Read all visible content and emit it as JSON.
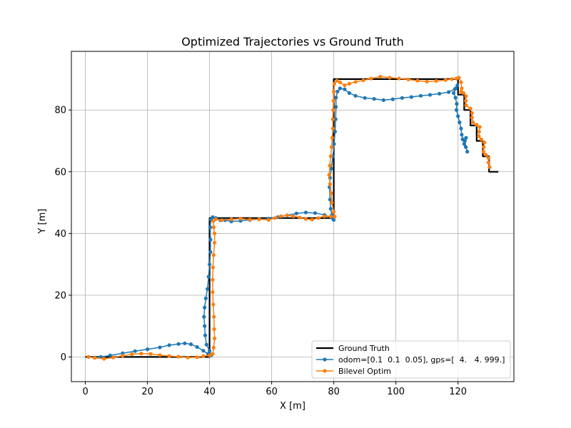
{
  "chart_data": {
    "type": "line",
    "title": "Optimized Trajectories vs Ground Truth",
    "xlabel": "X [m]",
    "ylabel": "Y [m]",
    "xlim": [
      -4.5,
      138
    ],
    "ylim": [
      -8,
      99
    ],
    "xticks": [
      0,
      20,
      40,
      60,
      80,
      100,
      120
    ],
    "yticks": [
      0,
      20,
      40,
      60,
      80
    ],
    "grid": true,
    "legend_position": "lower-right",
    "series": [
      {
        "name": "Ground Truth",
        "color": "#000000",
        "marker": "none",
        "points": [
          [
            0,
            0
          ],
          [
            40,
            0
          ],
          [
            40,
            45
          ],
          [
            80,
            45
          ],
          [
            80,
            90
          ],
          [
            120,
            90
          ],
          [
            120,
            85
          ],
          [
            122,
            85
          ],
          [
            122,
            80
          ],
          [
            124,
            80
          ],
          [
            124,
            75
          ],
          [
            126,
            75
          ],
          [
            126,
            70
          ],
          [
            128,
            70
          ],
          [
            128,
            65
          ],
          [
            130,
            65
          ],
          [
            130,
            60
          ],
          [
            133,
            60
          ]
        ]
      },
      {
        "name": "odom=[0.1  0.1  0.05], gps=[  4.   4. 999.]",
        "color": "#1f77b4",
        "marker": "dot",
        "points": [
          [
            1,
            0
          ],
          [
            3,
            -0.2
          ],
          [
            5,
            0
          ],
          [
            8,
            0.5
          ],
          [
            12,
            1.2
          ],
          [
            16,
            1.9
          ],
          [
            20,
            2.5
          ],
          [
            24,
            3.1
          ],
          [
            27,
            3.8
          ],
          [
            30,
            4.2
          ],
          [
            32,
            4.4
          ],
          [
            34,
            4.1
          ],
          [
            36,
            3.2
          ],
          [
            38,
            2
          ],
          [
            39.5,
            1
          ],
          [
            40.5,
            0.5
          ],
          [
            40,
            2
          ],
          [
            39,
            4
          ],
          [
            38.6,
            7
          ],
          [
            38.4,
            10
          ],
          [
            38.2,
            13
          ],
          [
            38.4,
            16
          ],
          [
            38.8,
            19
          ],
          [
            39.3,
            22
          ],
          [
            39.7,
            26
          ],
          [
            40,
            30
          ],
          [
            40.3,
            34
          ],
          [
            40.3,
            38
          ],
          [
            40.2,
            42
          ],
          [
            40.4,
            44.5
          ],
          [
            41,
            45.3
          ],
          [
            42,
            45
          ],
          [
            43.5,
            44.3
          ],
          [
            45,
            44.3
          ],
          [
            47,
            43.9
          ],
          [
            50,
            44.1
          ],
          [
            53,
            44.4
          ],
          [
            56,
            44.6
          ],
          [
            59,
            44.8
          ],
          [
            62,
            45.3
          ],
          [
            65,
            45.9
          ],
          [
            68,
            46.5
          ],
          [
            71,
            46.8
          ],
          [
            74,
            46.6
          ],
          [
            77,
            46
          ],
          [
            79.5,
            45
          ],
          [
            80,
            44.4
          ],
          [
            79.4,
            46
          ],
          [
            79,
            48
          ],
          [
            78.8,
            51
          ],
          [
            78.6,
            55
          ],
          [
            78.8,
            58
          ],
          [
            79.2,
            61
          ],
          [
            79.7,
            65
          ],
          [
            80.1,
            69
          ],
          [
            80.4,
            73
          ],
          [
            80.6,
            77
          ],
          [
            80.7,
            81
          ],
          [
            80.7,
            84
          ],
          [
            81.2,
            86
          ],
          [
            82,
            87
          ],
          [
            83.5,
            86.7
          ],
          [
            85,
            85.5
          ],
          [
            87,
            84.6
          ],
          [
            90,
            83.9
          ],
          [
            93,
            83.6
          ],
          [
            96,
            83.2
          ],
          [
            99,
            83.5
          ],
          [
            102,
            83.9
          ],
          [
            105,
            84.2
          ],
          [
            108,
            84.6
          ],
          [
            111,
            84.9
          ],
          [
            114,
            85.3
          ],
          [
            117,
            85.8
          ],
          [
            119,
            86.8
          ],
          [
            119.8,
            88
          ],
          [
            119.3,
            87
          ],
          [
            118.6,
            85.5
          ],
          [
            119.2,
            84
          ],
          [
            119.6,
            82
          ],
          [
            119.5,
            80
          ],
          [
            120,
            78
          ],
          [
            120.5,
            76
          ],
          [
            121,
            74
          ],
          [
            121.2,
            72
          ],
          [
            121.5,
            70.5
          ],
          [
            122,
            69
          ],
          [
            122.5,
            68
          ],
          [
            123,
            66.5
          ],
          [
            122.5,
            68
          ],
          [
            122.2,
            70
          ],
          [
            122.6,
            71
          ]
        ]
      },
      {
        "name": "Bilevel Optim",
        "color": "#ff7f0e",
        "marker": "dot",
        "points": [
          [
            1,
            0
          ],
          [
            3,
            -0.3
          ],
          [
            6,
            -0.6
          ],
          [
            9,
            -0.2
          ],
          [
            12,
            0.4
          ],
          [
            15,
            0.9
          ],
          [
            18,
            1.1
          ],
          [
            21,
            1
          ],
          [
            24,
            0.6
          ],
          [
            27,
            0.3
          ],
          [
            30,
            0.1
          ],
          [
            33,
            -0.2
          ],
          [
            36,
            -0.1
          ],
          [
            38,
            0.3
          ],
          [
            40,
            0.5
          ],
          [
            41,
            1
          ],
          [
            41.3,
            3
          ],
          [
            41.6,
            6
          ],
          [
            41.5,
            9
          ],
          [
            41.4,
            13
          ],
          [
            41.2,
            17
          ],
          [
            41,
            21
          ],
          [
            41,
            25
          ],
          [
            41.1,
            29
          ],
          [
            41.3,
            33
          ],
          [
            41.6,
            37
          ],
          [
            41.6,
            40
          ],
          [
            41.3,
            42
          ],
          [
            41.2,
            44
          ],
          [
            42,
            44.6
          ],
          [
            44,
            44.3
          ],
          [
            47,
            44.6
          ],
          [
            50,
            44.8
          ],
          [
            53,
            44.5
          ],
          [
            56,
            44.6
          ],
          [
            59,
            44.4
          ],
          [
            61,
            45
          ],
          [
            63,
            45.6
          ],
          [
            65,
            45.9
          ],
          [
            67,
            45.6
          ],
          [
            69,
            45.2
          ],
          [
            71,
            44.7
          ],
          [
            73,
            44.5
          ],
          [
            75,
            45
          ],
          [
            77,
            45.6
          ],
          [
            79,
            45.5
          ],
          [
            80.3,
            45.5
          ],
          [
            80,
            47
          ],
          [
            79.4,
            50
          ],
          [
            79.2,
            53
          ],
          [
            78.8,
            56
          ],
          [
            78.5,
            59
          ],
          [
            78.7,
            62
          ],
          [
            79,
            65
          ],
          [
            79.3,
            68
          ],
          [
            79.5,
            71
          ],
          [
            79.7,
            74
          ],
          [
            79.7,
            77
          ],
          [
            79.8,
            80
          ],
          [
            79.9,
            83
          ],
          [
            80,
            86
          ],
          [
            80.2,
            88.5
          ],
          [
            81,
            89.5
          ],
          [
            82,
            89
          ],
          [
            83.5,
            88
          ],
          [
            85,
            88.5
          ],
          [
            87,
            89.1
          ],
          [
            89.5,
            89.6
          ],
          [
            92,
            90.2
          ],
          [
            95,
            90.8
          ],
          [
            98,
            90.5
          ],
          [
            101,
            90.2
          ],
          [
            104,
            89.9
          ],
          [
            107,
            89.5
          ],
          [
            110,
            89.2
          ],
          [
            113,
            89.4
          ],
          [
            116,
            89.7
          ],
          [
            118,
            90
          ],
          [
            119.5,
            90.2
          ],
          [
            120.3,
            90.5
          ],
          [
            121,
            89
          ],
          [
            121.2,
            87
          ],
          [
            121,
            86
          ],
          [
            121.8,
            85.5
          ],
          [
            122.6,
            84.5
          ],
          [
            122.5,
            83
          ],
          [
            122.6,
            81.5
          ],
          [
            124,
            80.5
          ],
          [
            124.5,
            79
          ],
          [
            124.5,
            77.5
          ],
          [
            124.8,
            76
          ],
          [
            126,
            75.2
          ],
          [
            127,
            74.5
          ],
          [
            126.8,
            73
          ],
          [
            126.7,
            71.5
          ],
          [
            127.5,
            70.5
          ],
          [
            128.5,
            69.5
          ],
          [
            128.3,
            68
          ],
          [
            128.2,
            66.5
          ],
          [
            129,
            65.5
          ],
          [
            129.8,
            64.5
          ],
          [
            129.8,
            63
          ],
          [
            130.2,
            61.5
          ]
        ]
      }
    ]
  }
}
